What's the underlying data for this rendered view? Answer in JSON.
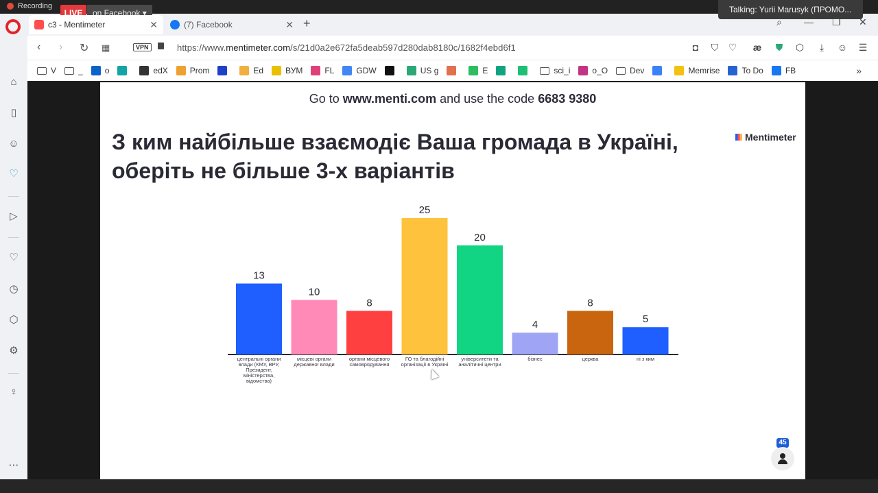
{
  "recording": {
    "label": "Recording",
    "live_label": "LIVE",
    "destination_label": "on Facebook ▾"
  },
  "talking": {
    "text": "Talking: Yurii Marusyk (ПРОМО..."
  },
  "tabs": [
    {
      "title": "c3 - Mentimeter",
      "favicon_color": "#ff4d4d"
    },
    {
      "title": "(7) Facebook",
      "favicon_color": "#1877f2"
    }
  ],
  "address_bar": {
    "vpn_label": "VPN",
    "url_prefix": "https://www.",
    "url_host": "mentimeter.com",
    "url_path": "/s/21d0a2e672fa5deab597d280dab8180c/1682f4ebd6f1"
  },
  "bookmarks": [
    {
      "label": "V",
      "icon": "folder-icon",
      "color": "#555"
    },
    {
      "label": "_",
      "icon": "folder-icon",
      "color": "#555"
    },
    {
      "label": "o",
      "icon": "outlook-icon",
      "color": "#0a64c8"
    },
    {
      "label": "",
      "icon": "u-icon",
      "color": "#13a5a5"
    },
    {
      "label": "edX",
      "icon": "edx-icon",
      "color": "#333"
    },
    {
      "label": "Prom",
      "icon": "bulb-icon",
      "color": "#f0a030"
    },
    {
      "label": "",
      "icon": "c-icon",
      "color": "#1e40c8"
    },
    {
      "label": "Ed",
      "icon": "hand-icon",
      "color": "#f0b040"
    },
    {
      "label": "ВУМ",
      "icon": "vum-icon",
      "color": "#e8c000"
    },
    {
      "label": "FL",
      "icon": "fl-icon",
      "color": "#e0407a"
    },
    {
      "label": "GDW",
      "icon": "google-icon",
      "color": "#4285f4"
    },
    {
      "label": "",
      "icon": "slash-icon",
      "color": "#111"
    },
    {
      "label": "US g",
      "icon": "shield-icon",
      "color": "#2aa876"
    },
    {
      "label": "",
      "icon": "bird-icon",
      "color": "#e07050"
    },
    {
      "label": "E",
      "icon": "evernote-icon",
      "color": "#2dbe60"
    },
    {
      "label": "",
      "icon": "chatgpt-icon",
      "color": "#10a37f"
    },
    {
      "label": "",
      "icon": "k-icon",
      "color": "#1dbf73"
    },
    {
      "label": "sci_i",
      "icon": "folder-icon",
      "color": "#555"
    },
    {
      "label": "o_O",
      "icon": "instagram-icon",
      "color": "#c13584"
    },
    {
      "label": "Dev",
      "icon": "folder-icon",
      "color": "#555"
    },
    {
      "label": "",
      "icon": "globe-icon",
      "color": "#3b82f6"
    },
    {
      "label": "Memrise",
      "icon": "memrise-icon",
      "color": "#f4c10f"
    },
    {
      "label": "To Do",
      "icon": "todo-icon",
      "color": "#2564cf"
    },
    {
      "label": "FB",
      "icon": "facebook-icon",
      "color": "#1877f2"
    }
  ],
  "slide": {
    "goto_prefix": "Go to ",
    "goto_site": "www.menti.com",
    "goto_middle": " and use the code ",
    "goto_code": "6683 9380",
    "title": "З ким найбільше взаємодіє Ваша громада в Україні, оберіть не більше 3-х варіантів",
    "brand": "Mentimeter",
    "participants_count": "45"
  },
  "chart_data": {
    "type": "bar",
    "categories": [
      "центральні органи влади (КМУ, ВРУ, Президент, міністерства, відомства)",
      "місцеві органи державної влади",
      "органи місцевого самоврядування",
      "ГО та благодійні організації в Україні",
      "університети та аналітичні центри",
      "бізнес",
      "церква",
      "ні з ким"
    ],
    "category_lines": [
      [
        "центральні органи",
        "влади (КМУ, ВРУ,",
        "Президент,",
        "міністерства,",
        "відомства)"
      ],
      [
        "місцеві органи",
        "державної влади"
      ],
      [
        "органи місцевого",
        "самоврядування"
      ],
      [
        "ГО та благодійні",
        "організації в Україні"
      ],
      [
        "університети та",
        "аналітичні центри"
      ],
      [
        "бізнес"
      ],
      [
        "церква"
      ],
      [
        "ні з ким"
      ]
    ],
    "values": [
      13,
      10,
      8,
      25,
      20,
      4,
      8,
      5
    ],
    "colors": [
      "#1f5fff",
      "#ff8ab8",
      "#ff4040",
      "#ffc23d",
      "#12d584",
      "#a0a4f5",
      "#c8650e",
      "#1f5fff"
    ],
    "ylim": [
      0,
      25
    ]
  }
}
